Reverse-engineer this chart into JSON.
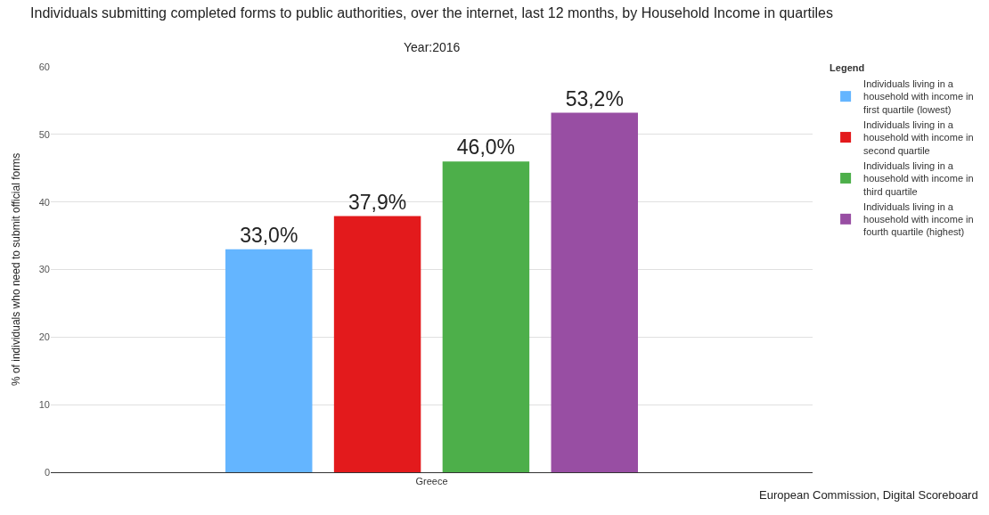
{
  "chart_data": {
    "type": "bar",
    "title": "Individuals submitting completed forms to public authorities, over the internet, last 12 months, by Household Income in quartiles",
    "subtitle": "Year:2016",
    "ylabel": "% of individuals who need to submit official forms",
    "legend_title": "Legend",
    "categories": [
      "Greece"
    ],
    "series": [
      {
        "name": "Individuals living in a household with income in first quartile (lowest)",
        "color": "#64b5ff",
        "values": [
          33.0
        ],
        "value_labels": [
          "33,0%"
        ]
      },
      {
        "name": "Individuals living in a household with income in second quartile",
        "color": "#e31a1c",
        "values": [
          37.9
        ],
        "value_labels": [
          "37,9%"
        ]
      },
      {
        "name": "Individuals living in a household with income in third quartile",
        "color": "#4daf4a",
        "values": [
          46.0
        ],
        "value_labels": [
          "46,0%"
        ]
      },
      {
        "name": "Individuals living in a household with income in fourth quartile (highest)",
        "color": "#984ea3",
        "values": [
          53.2
        ],
        "value_labels": [
          "53,2%"
        ]
      }
    ],
    "ylim": [
      0,
      60
    ],
    "yticks": [
      0,
      10,
      20,
      30,
      40,
      50,
      60
    ],
    "grid": "y",
    "legend": "right",
    "annotations": [
      "European Commission, Digital Scoreboard"
    ]
  }
}
